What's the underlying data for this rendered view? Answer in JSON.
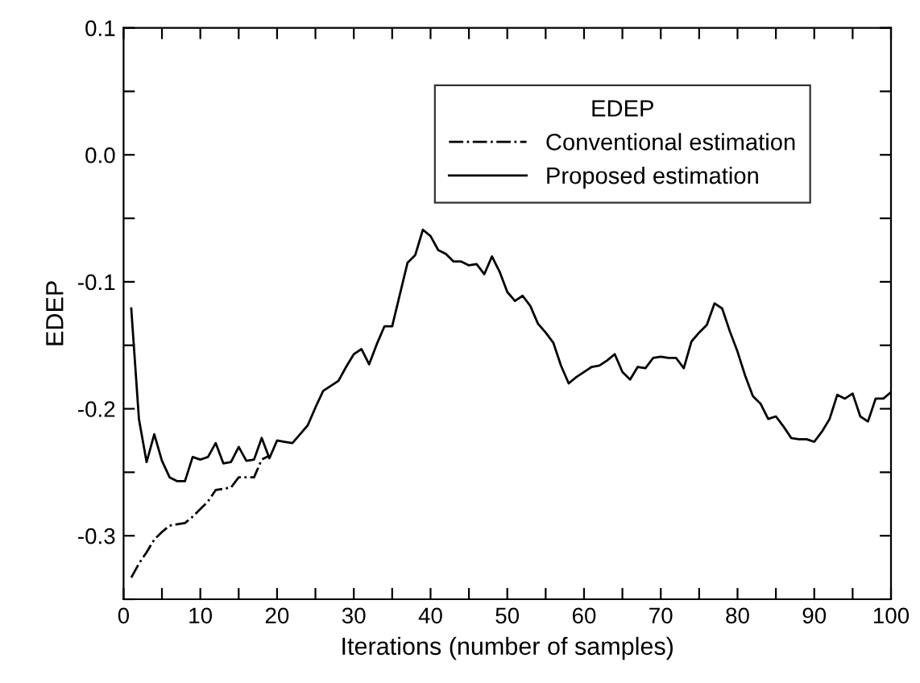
{
  "chart_data": {
    "type": "line",
    "xlabel": "Iterations (number of samples)",
    "ylabel": "EDEP",
    "legend_title": "EDEP",
    "legend": "top right",
    "grid": false,
    "xlim": [
      0,
      100
    ],
    "xticks": [
      0,
      {
        "value": 5,
        "label": null
      },
      10,
      {
        "value": 15,
        "label": null
      },
      20,
      {
        "value": 25,
        "label": null
      },
      30,
      {
        "value": 35,
        "label": null
      },
      40,
      {
        "value": 45,
        "label": null
      },
      50,
      {
        "value": 55,
        "label": null
      },
      60,
      {
        "value": 65,
        "label": null
      },
      70,
      {
        "value": 75,
        "label": null
      },
      80,
      {
        "value": 85,
        "label": null
      },
      90,
      {
        "value": 95,
        "label": null
      },
      100
    ],
    "ylim": [
      -0.35,
      0.1
    ],
    "yticks": [
      {
        "value": -0.35,
        "label": null
      },
      -0.3,
      {
        "value": -0.25,
        "label": null
      },
      -0.2,
      {
        "value": -0.15,
        "label": null
      },
      -0.1,
      {
        "value": -0.05,
        "label": null
      },
      {
        "value": 0.0,
        "label": "0.0"
      },
      {
        "value": 0.05,
        "label": null
      },
      0.1
    ],
    "series": [
      {
        "name": "Conventional estimation",
        "color": "#000000",
        "line_style": "dashdot",
        "x": [
          1,
          2,
          3,
          4,
          5,
          6,
          7,
          8,
          9,
          10,
          11,
          12,
          13,
          14,
          15,
          16,
          17,
          18,
          19
        ],
        "values": [
          -0.333,
          -0.322,
          -0.313,
          -0.303,
          -0.297,
          -0.292,
          -0.291,
          -0.29,
          -0.285,
          -0.279,
          -0.273,
          -0.264,
          -0.263,
          -0.262,
          -0.254,
          -0.254,
          -0.254,
          -0.24,
          -0.237
        ]
      },
      {
        "name": "Proposed estimation",
        "color": "#000000",
        "line_style": "solid",
        "x": [
          1,
          2,
          3,
          4,
          5,
          6,
          7,
          8,
          9,
          10,
          11,
          12,
          13,
          14,
          15,
          16,
          17,
          18,
          19,
          20,
          21,
          22,
          23,
          24,
          25,
          26,
          27,
          28,
          29,
          30,
          31,
          32,
          33,
          34,
          35,
          36,
          37,
          38,
          39,
          40,
          41,
          42,
          43,
          44,
          45,
          46,
          47,
          48,
          49,
          50,
          51,
          52,
          53,
          54,
          55,
          56,
          57,
          58,
          59,
          60,
          61,
          62,
          63,
          64,
          65,
          66,
          67,
          68,
          69,
          70,
          71,
          72,
          73,
          74,
          75,
          76,
          77,
          78,
          79,
          80,
          81,
          82,
          83,
          84,
          85,
          86,
          87,
          88,
          89,
          90,
          91,
          92,
          93,
          94,
          95,
          96,
          97,
          98,
          99,
          100
        ],
        "values": [
          -0.121,
          -0.208,
          -0.242,
          -0.22,
          -0.241,
          -0.254,
          -0.257,
          -0.257,
          -0.238,
          -0.24,
          -0.238,
          -0.227,
          -0.243,
          -0.242,
          -0.23,
          -0.241,
          -0.24,
          -0.223,
          -0.239,
          -0.225,
          -0.226,
          -0.227,
          -0.22,
          -0.213,
          -0.199,
          -0.186,
          -0.182,
          -0.178,
          -0.167,
          -0.157,
          -0.153,
          -0.165,
          -0.149,
          -0.135,
          -0.135,
          -0.11,
          -0.085,
          -0.079,
          -0.059,
          -0.064,
          -0.075,
          -0.078,
          -0.084,
          -0.084,
          -0.087,
          -0.086,
          -0.094,
          -0.08,
          -0.092,
          -0.108,
          -0.115,
          -0.111,
          -0.119,
          -0.133,
          -0.14,
          -0.148,
          -0.166,
          -0.18,
          -0.175,
          -0.171,
          -0.167,
          -0.166,
          -0.162,
          -0.157,
          -0.171,
          -0.177,
          -0.167,
          -0.168,
          -0.16,
          -0.159,
          -0.16,
          -0.16,
          -0.168,
          -0.147,
          -0.14,
          -0.134,
          -0.117,
          -0.121,
          -0.139,
          -0.155,
          -0.174,
          -0.19,
          -0.196,
          -0.208,
          -0.206,
          -0.214,
          -0.223,
          -0.224,
          -0.224,
          -0.226,
          -0.218,
          -0.208,
          -0.189,
          -0.192,
          -0.188,
          -0.206,
          -0.21,
          -0.192,
          -0.192,
          -0.187
        ]
      }
    ]
  }
}
